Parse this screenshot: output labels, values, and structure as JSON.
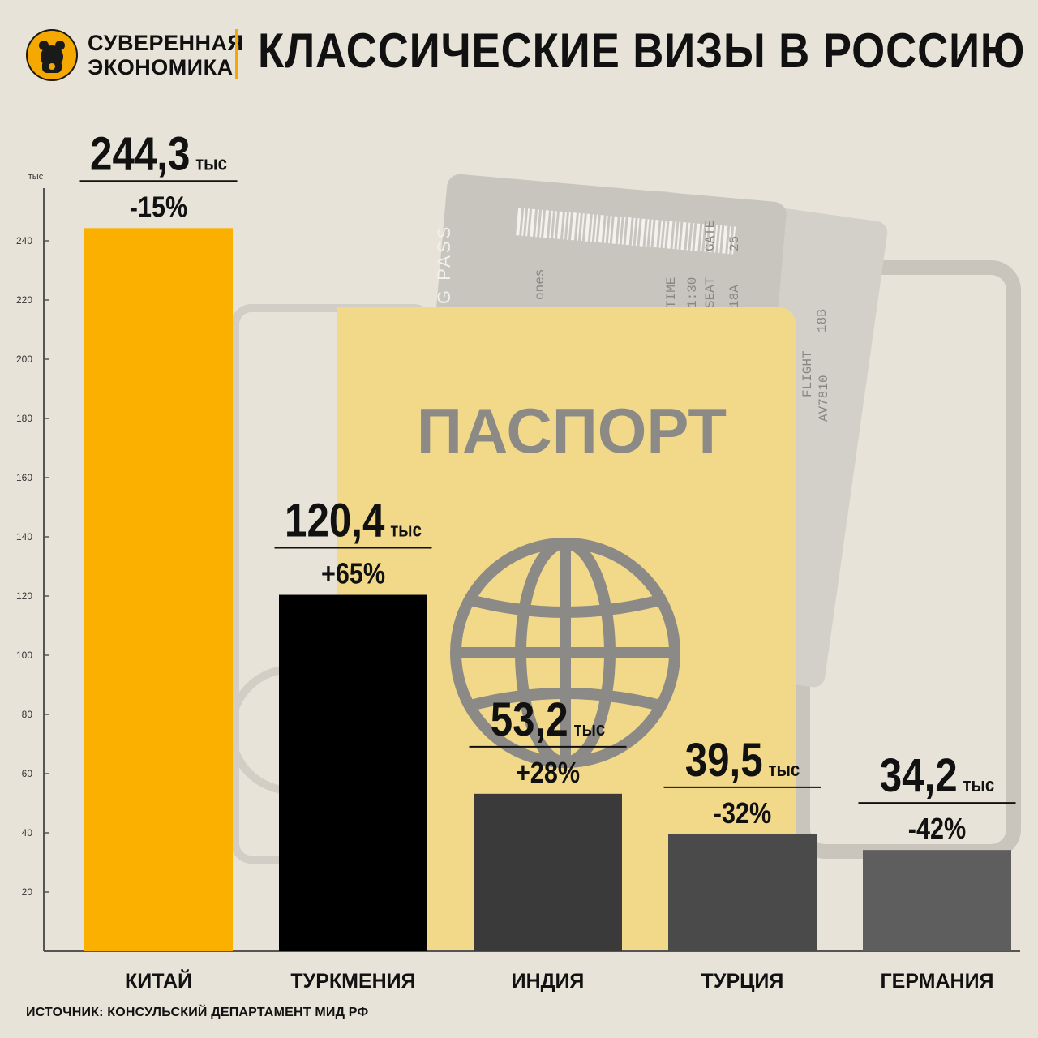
{
  "brand": {
    "line1": "СУВЕРЕННАЯ",
    "line2": "ЭКОНОМИКА"
  },
  "header": {
    "title": "КЛАССИЧЕСКИЕ ВИЗЫ В РОССИЮ"
  },
  "background": {
    "passport_label": "ПАСПОРТ",
    "ticket_label": "G PASS",
    "ticket_fields": [
      "GATE",
      "25",
      "SEAT",
      "18A",
      "18B",
      "TIME",
      "1:30",
      "FLIGHT",
      "AV7810",
      "ones"
    ]
  },
  "colors": {
    "accent": "#f5a800",
    "dark": "#111111",
    "bg": "#e8e3d8",
    "passport": "#f2d98a"
  },
  "chart_data": {
    "type": "bar",
    "unit_label": "тыс",
    "ylim": [
      0,
      260
    ],
    "yticks": [
      20,
      40,
      60,
      80,
      100,
      120,
      140,
      160,
      180,
      200,
      220,
      240
    ],
    "categories": [
      "КИТАЙ",
      "ТУРКМЕНИЯ",
      "ИНДИЯ",
      "ТУРЦИЯ",
      "ГЕРМАНИЯ"
    ],
    "values": [
      244.3,
      120.4,
      53.2,
      39.5,
      34.2
    ],
    "value_labels": [
      "244,3",
      "120,4",
      "53,2",
      "39,5",
      "34,2"
    ],
    "value_suffix": "тыс",
    "changes": [
      "-15%",
      "+65%",
      "+28%",
      "-32%",
      "-42%"
    ],
    "bar_colors": [
      "#fbb000",
      "#000000",
      "#3a3a3a",
      "#4a4a4a",
      "#5e5e5e"
    ],
    "grid": false,
    "legend": "none"
  },
  "footer": {
    "source": "ИСТОЧНИК: КОНСУЛЬСКИЙ ДЕПАРТАМЕНТ МИД РФ"
  }
}
